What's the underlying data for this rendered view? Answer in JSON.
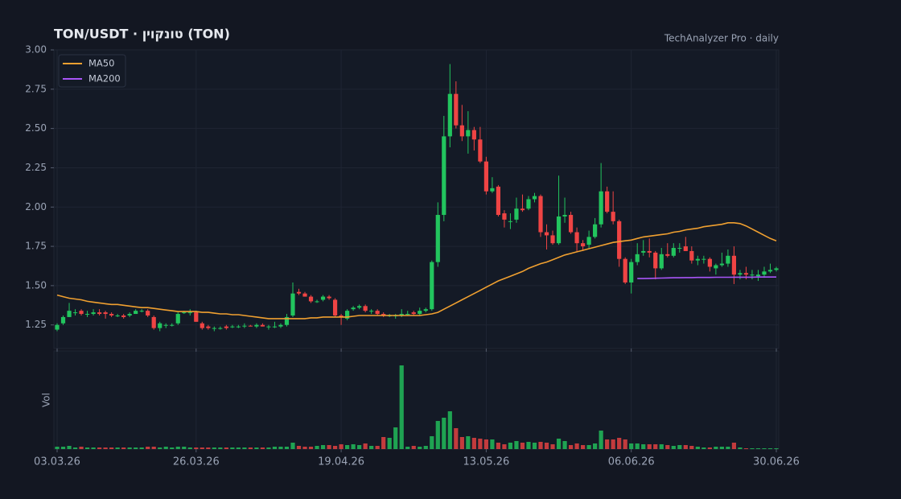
{
  "chart_data": {
    "type": "candlestick",
    "title": "TON/USDT  ·  טונקוין (TON)",
    "subtitle": "TechAnalyzer Pro · daily",
    "volume_label": "Vol",
    "categories": [
      "03.03.26",
      null,
      null,
      null,
      null,
      null,
      null,
      null,
      null,
      null,
      null,
      null,
      null,
      null,
      null,
      null,
      null,
      null,
      null,
      null,
      null,
      null,
      null,
      "26.03.26",
      null,
      null,
      null,
      null,
      null,
      null,
      null,
      null,
      null,
      null,
      null,
      null,
      null,
      null,
      null,
      null,
      null,
      null,
      null,
      null,
      null,
      null,
      null,
      "19.04.26",
      null,
      null,
      null,
      null,
      null,
      null,
      null,
      null,
      null,
      null,
      null,
      null,
      null,
      null,
      null,
      null,
      null,
      null,
      null,
      null,
      null,
      null,
      null,
      "13.05.26",
      null,
      null,
      null,
      null,
      null,
      null,
      null,
      null,
      null,
      null,
      null,
      null,
      null,
      null,
      null,
      null,
      null,
      null,
      null,
      null,
      null,
      null,
      null,
      "06.06.26",
      null,
      null,
      null,
      null,
      null,
      null,
      null,
      null,
      null,
      null,
      null,
      null,
      null,
      null,
      null,
      null,
      null,
      null,
      null,
      null,
      null,
      null,
      null,
      "30.06.26"
    ],
    "open": [
      1.22,
      1.26,
      1.3,
      1.33,
      1.34,
      1.32,
      1.32,
      1.33,
      1.33,
      1.32,
      1.31,
      1.31,
      1.31,
      1.32,
      1.34,
      1.34,
      1.3,
      1.23,
      1.25,
      1.25,
      1.26,
      1.33,
      1.33,
      1.33,
      1.26,
      1.24,
      1.23,
      1.23,
      1.24,
      1.24,
      1.24,
      1.24,
      1.245,
      1.24,
      1.25,
      1.24,
      1.24,
      1.24,
      1.25,
      1.31,
      1.46,
      1.45,
      1.43,
      1.4,
      1.41,
      1.43,
      1.41,
      1.31,
      1.29,
      1.35,
      1.36,
      1.37,
      1.34,
      1.34,
      1.32,
      1.31,
      1.31,
      1.31,
      1.32,
      1.33,
      1.32,
      1.34,
      1.35,
      1.65,
      1.95,
      2.45,
      2.72,
      2.52,
      2.45,
      2.49,
      2.43,
      2.29,
      2.1,
      2.13,
      1.96,
      1.91,
      1.92,
      1.99,
      1.99,
      2.05,
      2.07,
      1.84,
      1.82,
      1.77,
      1.94,
      1.95,
      1.84,
      1.77,
      1.76,
      1.81,
      1.89,
      2.1,
      1.97,
      1.91,
      1.67,
      1.52,
      1.65,
      1.71,
      1.72,
      1.71,
      1.61,
      1.7,
      1.69,
      1.74,
      1.75,
      1.72,
      1.66,
      1.67,
      1.67,
      1.61,
      1.63,
      1.64,
      1.69,
      1.57,
      1.58,
      1.57,
      1.56,
      1.57,
      1.59,
      1.6
    ],
    "high": [
      1.26,
      1.31,
      1.39,
      1.35,
      1.35,
      1.34,
      1.35,
      1.35,
      1.34,
      1.33,
      1.32,
      1.32,
      1.33,
      1.35,
      1.35,
      1.35,
      1.31,
      1.27,
      1.26,
      1.26,
      1.33,
      1.34,
      1.35,
      1.34,
      1.27,
      1.25,
      1.24,
      1.24,
      1.25,
      1.25,
      1.25,
      1.26,
      1.25,
      1.26,
      1.26,
      1.25,
      1.27,
      1.26,
      1.32,
      1.52,
      1.48,
      1.46,
      1.44,
      1.41,
      1.44,
      1.44,
      1.42,
      1.32,
      1.35,
      1.37,
      1.38,
      1.38,
      1.35,
      1.35,
      1.33,
      1.32,
      1.32,
      1.35,
      1.34,
      1.34,
      1.36,
      1.36,
      1.66,
      2.03,
      2.58,
      2.91,
      2.8,
      2.65,
      2.61,
      2.51,
      2.51,
      2.32,
      2.19,
      2.14,
      1.98,
      1.96,
      2.06,
      2.08,
      2.07,
      2.09,
      2.08,
      1.89,
      1.85,
      2.2,
      2.06,
      1.97,
      1.87,
      1.79,
      1.85,
      1.93,
      2.28,
      2.13,
      2.1,
      1.92,
      1.68,
      1.67,
      1.77,
      1.79,
      1.8,
      1.72,
      1.74,
      1.77,
      1.77,
      1.77,
      1.81,
      1.75,
      1.69,
      1.69,
      1.68,
      1.64,
      1.71,
      1.73,
      1.75,
      1.6,
      1.62,
      1.6,
      1.6,
      1.62,
      1.64,
      1.62
    ],
    "low": [
      1.21,
      1.25,
      1.3,
      1.31,
      1.31,
      1.3,
      1.31,
      1.31,
      1.29,
      1.3,
      1.3,
      1.29,
      1.3,
      1.32,
      1.33,
      1.3,
      1.22,
      1.21,
      1.23,
      1.24,
      1.25,
      1.32,
      1.31,
      1.27,
      1.22,
      1.22,
      1.21,
      1.22,
      1.22,
      1.23,
      1.23,
      1.23,
      1.24,
      1.23,
      1.24,
      1.22,
      1.23,
      1.23,
      1.24,
      1.3,
      1.44,
      1.43,
      1.39,
      1.39,
      1.4,
      1.41,
      1.3,
      1.25,
      1.28,
      1.34,
      1.35,
      1.33,
      1.32,
      1.31,
      1.3,
      1.3,
      1.29,
      1.3,
      1.31,
      1.31,
      1.31,
      1.33,
      1.34,
      1.62,
      1.91,
      2.38,
      2.5,
      2.42,
      2.34,
      2.36,
      2.28,
      2.08,
      2.09,
      1.94,
      1.87,
      1.86,
      1.9,
      1.97,
      1.98,
      2.03,
      1.81,
      1.73,
      1.76,
      1.76,
      1.9,
      1.83,
      1.72,
      1.72,
      1.74,
      1.8,
      1.87,
      1.96,
      1.89,
      1.62,
      1.51,
      1.45,
      1.63,
      1.69,
      1.68,
      1.54,
      1.6,
      1.68,
      1.68,
      1.71,
      1.72,
      1.64,
      1.63,
      1.64,
      1.59,
      1.57,
      1.62,
      1.62,
      1.51,
      1.54,
      1.54,
      1.54,
      1.53,
      1.55,
      1.58,
      1.59
    ],
    "close": [
      1.25,
      1.3,
      1.34,
      1.33,
      1.32,
      1.32,
      1.33,
      1.32,
      1.32,
      1.31,
      1.31,
      1.3,
      1.32,
      1.34,
      1.34,
      1.31,
      1.23,
      1.26,
      1.25,
      1.25,
      1.32,
      1.33,
      1.33,
      1.27,
      1.23,
      1.23,
      1.23,
      1.23,
      1.23,
      1.24,
      1.24,
      1.245,
      1.24,
      1.25,
      1.24,
      1.24,
      1.24,
      1.25,
      1.3,
      1.45,
      1.45,
      1.43,
      1.4,
      1.4,
      1.43,
      1.42,
      1.31,
      1.3,
      1.34,
      1.36,
      1.37,
      1.34,
      1.34,
      1.32,
      1.31,
      1.31,
      1.31,
      1.32,
      1.32,
      1.32,
      1.34,
      1.35,
      1.65,
      1.95,
      2.45,
      2.72,
      2.52,
      2.45,
      2.49,
      2.43,
      2.29,
      2.1,
      2.12,
      1.95,
      1.92,
      1.91,
      1.99,
      1.98,
      2.05,
      2.07,
      1.84,
      1.82,
      1.77,
      1.94,
      1.95,
      1.84,
      1.77,
      1.75,
      1.81,
      1.89,
      2.1,
      1.97,
      1.91,
      1.67,
      1.52,
      1.65,
      1.7,
      1.72,
      1.71,
      1.61,
      1.7,
      1.69,
      1.74,
      1.74,
      1.72,
      1.66,
      1.67,
      1.67,
      1.62,
      1.63,
      1.64,
      1.69,
      1.57,
      1.58,
      1.57,
      1.57,
      1.57,
      1.59,
      1.6,
      1.61
    ],
    "volume": [
      3,
      3,
      4,
      2,
      3,
      2,
      2,
      2,
      2,
      2,
      2,
      2,
      2,
      2,
      2,
      3,
      3,
      2,
      3,
      2,
      3,
      3,
      2,
      2,
      2,
      2,
      2,
      2,
      2,
      2,
      2,
      2,
      2,
      2,
      2,
      2,
      3,
      3,
      3,
      8,
      4,
      3,
      3,
      4,
      5,
      5,
      4,
      6,
      5,
      6,
      5,
      7,
      4,
      4,
      15,
      14,
      27,
      104,
      3,
      4,
      3,
      4,
      16,
      35,
      39,
      47,
      26,
      15,
      16,
      14,
      13,
      12,
      12,
      8,
      6,
      8,
      10,
      8,
      9,
      8,
      9,
      8,
      6,
      13,
      10,
      5,
      7,
      5,
      5,
      7,
      23,
      12,
      12,
      14,
      12,
      7,
      7,
      6,
      6,
      6,
      6,
      5,
      4,
      5,
      5,
      4,
      3,
      2,
      2,
      3,
      3,
      3,
      8,
      2,
      1,
      1,
      1,
      1,
      1,
      1
    ],
    "up_color": "#22c55e",
    "down_color": "#ef4444",
    "series": [
      {
        "name": "MA50",
        "color": "#f0a030",
        "values": [
          1.44,
          1.43,
          1.42,
          1.415,
          1.41,
          1.4,
          1.395,
          1.39,
          1.385,
          1.38,
          1.38,
          1.375,
          1.37,
          1.365,
          1.36,
          1.36,
          1.355,
          1.35,
          1.345,
          1.34,
          1.335,
          1.335,
          1.335,
          1.335,
          1.33,
          1.33,
          1.325,
          1.32,
          1.32,
          1.315,
          1.315,
          1.31,
          1.305,
          1.3,
          1.295,
          1.29,
          1.29,
          1.29,
          1.29,
          1.29,
          1.29,
          1.29,
          1.295,
          1.295,
          1.3,
          1.3,
          1.3,
          1.3,
          1.3,
          1.305,
          1.31,
          1.31,
          1.31,
          1.31,
          1.31,
          1.31,
          1.31,
          1.31,
          1.31,
          1.31,
          1.31,
          1.315,
          1.32,
          1.33,
          1.35,
          1.37,
          1.39,
          1.41,
          1.43,
          1.45,
          1.47,
          1.49,
          1.51,
          1.53,
          1.545,
          1.56,
          1.575,
          1.59,
          1.61,
          1.625,
          1.64,
          1.65,
          1.665,
          1.68,
          1.695,
          1.705,
          1.715,
          1.725,
          1.735,
          1.745,
          1.755,
          1.765,
          1.775,
          1.78,
          1.785,
          1.79,
          1.8,
          1.81,
          1.815,
          1.82,
          1.825,
          1.83,
          1.84,
          1.845,
          1.855,
          1.86,
          1.865,
          1.875,
          1.88,
          1.885,
          1.89,
          1.9,
          1.9,
          1.895,
          1.88,
          1.86,
          1.84,
          1.82,
          1.8,
          1.785
        ]
      },
      {
        "name": "MA200",
        "color": "#a855f7",
        "values": [
          null,
          null,
          null,
          null,
          null,
          null,
          null,
          null,
          null,
          null,
          null,
          null,
          null,
          null,
          null,
          null,
          null,
          null,
          null,
          null,
          null,
          null,
          null,
          null,
          null,
          null,
          null,
          null,
          null,
          null,
          null,
          null,
          null,
          null,
          null,
          null,
          null,
          null,
          null,
          null,
          null,
          null,
          null,
          null,
          null,
          null,
          null,
          null,
          null,
          null,
          null,
          null,
          null,
          null,
          null,
          null,
          null,
          null,
          null,
          null,
          null,
          null,
          null,
          null,
          null,
          null,
          null,
          null,
          null,
          null,
          null,
          null,
          null,
          null,
          null,
          null,
          null,
          null,
          null,
          null,
          null,
          null,
          null,
          null,
          null,
          null,
          null,
          null,
          null,
          null,
          null,
          null,
          null,
          null,
          null,
          null,
          1.545,
          1.545,
          1.546,
          1.547,
          1.548,
          1.549,
          1.55,
          1.55,
          1.551,
          1.551,
          1.552,
          1.552,
          1.552,
          1.553,
          1.553,
          1.553,
          1.554,
          1.554,
          1.554,
          1.554,
          1.555,
          1.555,
          1.555,
          1.555
        ]
      }
    ],
    "ylim": [
      1.1,
      3.0
    ],
    "yticks": [
      1.25,
      {
        "value": 1.5,
        "label": "1.50"
      },
      1.75,
      {
        "value": 2,
        "label": "2.00"
      },
      2.25,
      {
        "value": 2.5,
        "label": "2.50"
      },
      2.75,
      {
        "value": 3,
        "label": "3.00"
      }
    ],
    "grid": true,
    "legend": "upper left"
  }
}
